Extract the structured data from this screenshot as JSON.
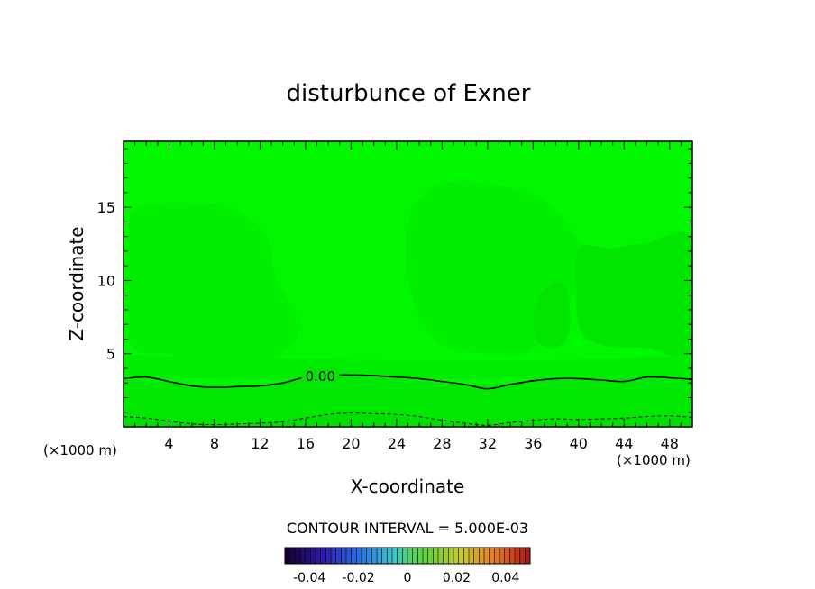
{
  "chart_data": {
    "type": "heatmap",
    "title": "disturbunce of Exner",
    "xlabel": "X-coordinate",
    "ylabel": "Z-coordinate",
    "x_unit_left": "(×1000 m)",
    "x_unit_right": "(×1000 m)",
    "xlim": [
      0,
      50
    ],
    "ylim": [
      0,
      19.5
    ],
    "x_ticks": [
      4,
      8,
      12,
      16,
      20,
      24,
      28,
      32,
      36,
      40,
      44,
      48
    ],
    "x_tick_labels": [
      "4",
      "8",
      "12",
      "16",
      "20",
      "24",
      "28",
      "32",
      "36",
      "40",
      "44",
      "48"
    ],
    "y_ticks": [
      5,
      10,
      15
    ],
    "y_tick_labels": [
      "5",
      "10",
      "15"
    ],
    "grid": false,
    "background_color": "#00f700",
    "contours": [
      {
        "level": 0.0,
        "label": "0.00",
        "label_at": 17.3,
        "style": "solid",
        "x": [
          0,
          2,
          4,
          6,
          8,
          10,
          12,
          14,
          16,
          18,
          20,
          22,
          24,
          26,
          28,
          30,
          32,
          34,
          36,
          38,
          40,
          42,
          44,
          46,
          48,
          50
        ],
        "z": [
          3.3,
          3.4,
          3.1,
          2.8,
          2.7,
          2.75,
          2.8,
          3.0,
          3.4,
          3.55,
          3.55,
          3.5,
          3.4,
          3.3,
          3.1,
          2.9,
          2.6,
          2.9,
          3.15,
          3.3,
          3.3,
          3.2,
          3.1,
          3.4,
          3.35,
          3.25
        ]
      },
      {
        "level": -0.005,
        "label": "",
        "style": "dashed",
        "x": [
          0,
          2,
          4,
          6,
          8,
          10,
          12,
          14,
          16,
          18,
          20,
          22,
          24,
          26,
          28,
          30,
          32,
          34,
          36,
          38,
          40,
          42,
          44,
          46,
          48,
          50
        ],
        "z": [
          0.7,
          0.6,
          0.4,
          0.2,
          0.15,
          0.2,
          0.25,
          0.35,
          0.6,
          0.85,
          0.95,
          0.9,
          0.85,
          0.7,
          0.45,
          0.25,
          0.1,
          0.3,
          0.45,
          0.55,
          0.5,
          0.55,
          0.6,
          0.7,
          0.75,
          0.65
        ]
      }
    ],
    "shading_regions": [
      {
        "color": "#00ee00",
        "x": [
          0.5,
          3,
          6,
          9,
          11.5,
          12.8,
          13.5,
          15.5,
          14,
          12,
          8,
          4,
          0.5
        ],
        "z": [
          14,
          15.2,
          15.3,
          15.1,
          14,
          12.5,
          10,
          7,
          5,
          4.6,
          4.6,
          5,
          6
        ]
      },
      {
        "color": "#00ee00",
        "x": [
          25,
          27,
          30,
          33,
          37,
          40,
          41,
          39,
          36,
          33,
          30,
          27,
          25
        ],
        "z": [
          14,
          16.3,
          16.8,
          16.5,
          15.5,
          12.8,
          11,
          8.5,
          5.3,
          5,
          5.2,
          6.2,
          10
        ]
      },
      {
        "color": "#00e400",
        "x": [
          36.5,
          38,
          39,
          39.2,
          38,
          36.4,
          36
        ],
        "z": [
          9,
          9.9,
          9.2,
          6.5,
          5.4,
          5.8,
          7.5
        ]
      },
      {
        "color": "#00e600",
        "x": [
          40,
          43,
          46,
          50,
          50,
          46,
          42,
          40
        ],
        "z": [
          12,
          12.2,
          12.6,
          12.8,
          5.2,
          5.4,
          5.6,
          7
        ]
      },
      {
        "color": "#00ec00",
        "x": [
          0,
          10,
          20,
          30,
          40,
          50,
          50,
          0
        ],
        "z": [
          4.9,
          4.7,
          4.6,
          4.5,
          4.6,
          4.9,
          3.3,
          3.3
        ]
      },
      {
        "color": "#00e800",
        "x": [
          0,
          10,
          20,
          30,
          40,
          50,
          50,
          0
        ],
        "z": [
          3.3,
          2.8,
          3.55,
          2.9,
          3.3,
          3.25,
          0,
          0
        ]
      },
      {
        "color": "#00e000",
        "x": [
          0,
          10,
          20,
          30,
          40,
          50,
          50,
          0
        ],
        "z": [
          0.7,
          0.2,
          0.95,
          0.25,
          0.5,
          0.65,
          0,
          0
        ]
      }
    ],
    "contour_interval_text": "CONTOUR INTERVAL = 5.000E-03",
    "colorbar": {
      "vmin": -0.05,
      "vmax": 0.05,
      "tick_values": [
        -0.04,
        -0.02,
        0,
        0.02,
        0.04
      ],
      "tick_labels": [
        "-0.04",
        "-0.02",
        "0",
        "0.02",
        "0.04"
      ]
    }
  }
}
